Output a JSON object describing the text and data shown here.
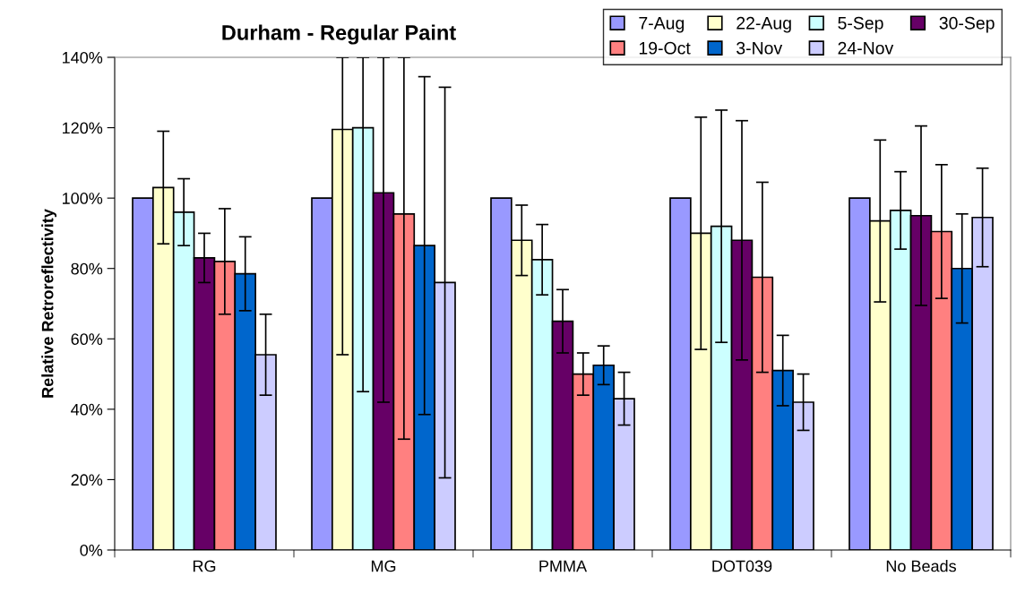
{
  "chart_data": {
    "type": "bar",
    "title": "Durham - Regular Paint",
    "ylabel": "Relative Retroreflectivity",
    "categories": [
      "RG",
      "MG",
      "PMMA",
      "DOT039",
      "No Beads"
    ],
    "ylim": [
      0,
      140
    ],
    "yticks": [
      {
        "value": 0,
        "label": "0%"
      },
      {
        "value": 20,
        "label": "20%"
      },
      {
        "value": 40,
        "label": "40%"
      },
      {
        "value": 60,
        "label": "60%"
      },
      {
        "value": 80,
        "label": "80%"
      },
      {
        "value": 100,
        "label": "100%"
      },
      {
        "value": 120,
        "label": "120%"
      },
      {
        "value": 140,
        "label": "140%"
      }
    ],
    "grid": false,
    "legend": "top right",
    "series": [
      {
        "name": "7-Aug",
        "color": "#9999ff",
        "values": [
          100,
          100,
          100,
          100,
          100
        ]
      },
      {
        "name": "22-Aug",
        "color": "#ffffcc",
        "values": [
          103,
          119.5,
          88,
          90,
          93.5
        ],
        "errors": [
          16,
          [
            55.5,
            140
          ],
          10,
          33,
          23
        ]
      },
      {
        "name": "5-Sep",
        "color": "#ccffff",
        "values": [
          96,
          120,
          82.5,
          92,
          96.5
        ],
        "errors": [
          9.5,
          [
            45,
            140
          ],
          10,
          33,
          11
        ]
      },
      {
        "name": "30-Sep",
        "color": "#660066",
        "values": [
          83,
          101.5,
          65,
          88,
          95
        ],
        "errors": [
          7,
          [
            42,
            140
          ],
          9,
          34,
          25.5
        ]
      },
      {
        "name": "19-Oct",
        "color": "#ff8080",
        "values": [
          82,
          95.5,
          50,
          77.5,
          90.5
        ],
        "errors": [
          15,
          [
            31.5,
            140
          ],
          6,
          27,
          19
        ]
      },
      {
        "name": "3-Nov",
        "color": "#0066cc",
        "values": [
          78.5,
          86.5,
          52.5,
          51,
          80
        ],
        "errors": [
          10.5,
          48,
          5.5,
          10,
          15.5
        ]
      },
      {
        "name": "24-Nov",
        "color": "#ccccff",
        "values": [
          55.5,
          76,
          43,
          42,
          94.5
        ],
        "errors": [
          11.5,
          55.5,
          7.5,
          8,
          14
        ]
      }
    ]
  }
}
